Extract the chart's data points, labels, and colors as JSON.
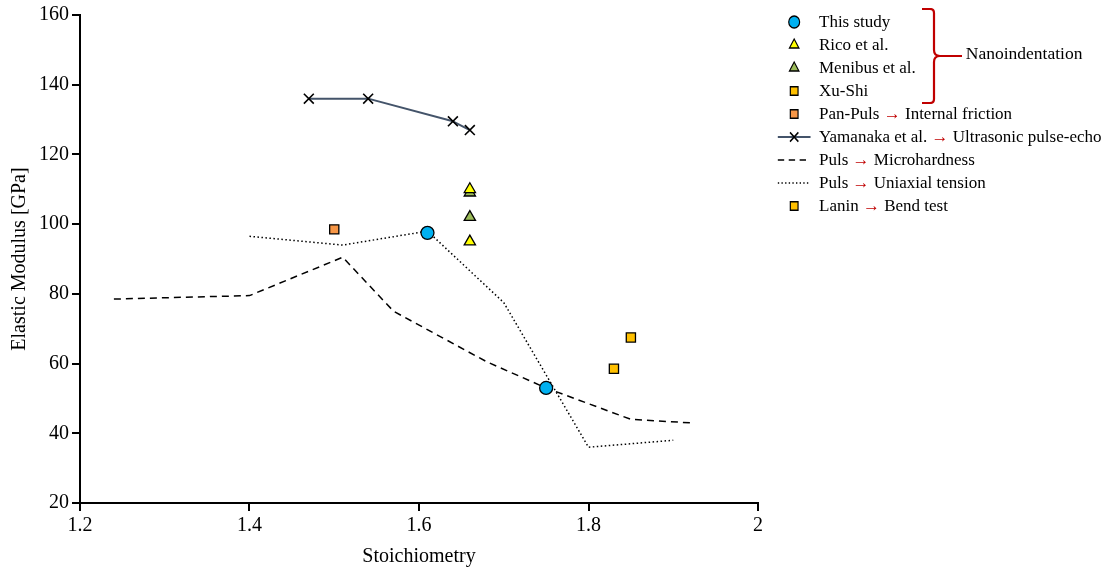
{
  "chart_data": {
    "type": "scatter",
    "xlabel": "Stoichiometry",
    "ylabel": "Elastic Modulus [GPa]",
    "xlim": [
      1.2,
      2
    ],
    "xticks": [
      1.2,
      1.4,
      1.6,
      1.8,
      2
    ],
    "ylim": [
      20,
      160
    ],
    "yticks": [
      20,
      40,
      60,
      80,
      100,
      120,
      140,
      160
    ],
    "grid": false,
    "legend": "right",
    "annotations": [
      "Nanoindentation"
    ],
    "series": [
      {
        "name": "This study",
        "marker": "circle",
        "color": "#00b0f0",
        "x": [
          1.61,
          1.75
        ],
        "values": [
          97.5,
          53
        ]
      },
      {
        "name": "Rico et al.",
        "marker": "triangle",
        "color": "#ffff00",
        "x": [
          1.66,
          1.66
        ],
        "values": [
          110,
          95
        ]
      },
      {
        "name": "Menibus et al.",
        "marker": "triangle",
        "color": "#9bbb59",
        "x": [
          1.66,
          1.66
        ],
        "values": [
          109,
          102
        ]
      },
      {
        "name": "Xu-Shi",
        "marker": "square",
        "color": "#ffc000",
        "x": [
          1.83
        ],
        "values": [
          58.5
        ]
      },
      {
        "name": "Pan-Puls → Internal friction",
        "marker": "square",
        "color": "#f79646",
        "x": [
          1.5
        ],
        "values": [
          98.5
        ]
      },
      {
        "name": "Yamanaka et al. → Ultrasonic pulse-echo",
        "type": "line",
        "marker": "cross",
        "line_style": "solid",
        "color": "#44546a",
        "x": [
          1.47,
          1.54,
          1.64,
          1.66
        ],
        "values": [
          136,
          136,
          129.5,
          127
        ]
      },
      {
        "name": "Puls → Microhardness",
        "type": "line",
        "marker": "none",
        "line_style": "dashed",
        "color": "#000000",
        "x": [
          1.24,
          1.4,
          1.51,
          1.57,
          1.68,
          1.75,
          1.85,
          1.92
        ],
        "values": [
          78.5,
          79.5,
          90.5,
          75,
          60.5,
          53,
          44,
          43
        ]
      },
      {
        "name": "Puls → Uniaxial tension",
        "type": "line",
        "marker": "none",
        "line_style": "dotted",
        "color": "#000000",
        "x": [
          1.4,
          1.51,
          1.61,
          1.7,
          1.8,
          1.9
        ],
        "values": [
          96.5,
          94,
          98,
          77.5,
          36,
          38
        ]
      },
      {
        "name": "Lanin → Bend test",
        "marker": "square",
        "color": "#ffc000",
        "x": [
          1.85
        ],
        "values": [
          67.5
        ]
      }
    ]
  }
}
